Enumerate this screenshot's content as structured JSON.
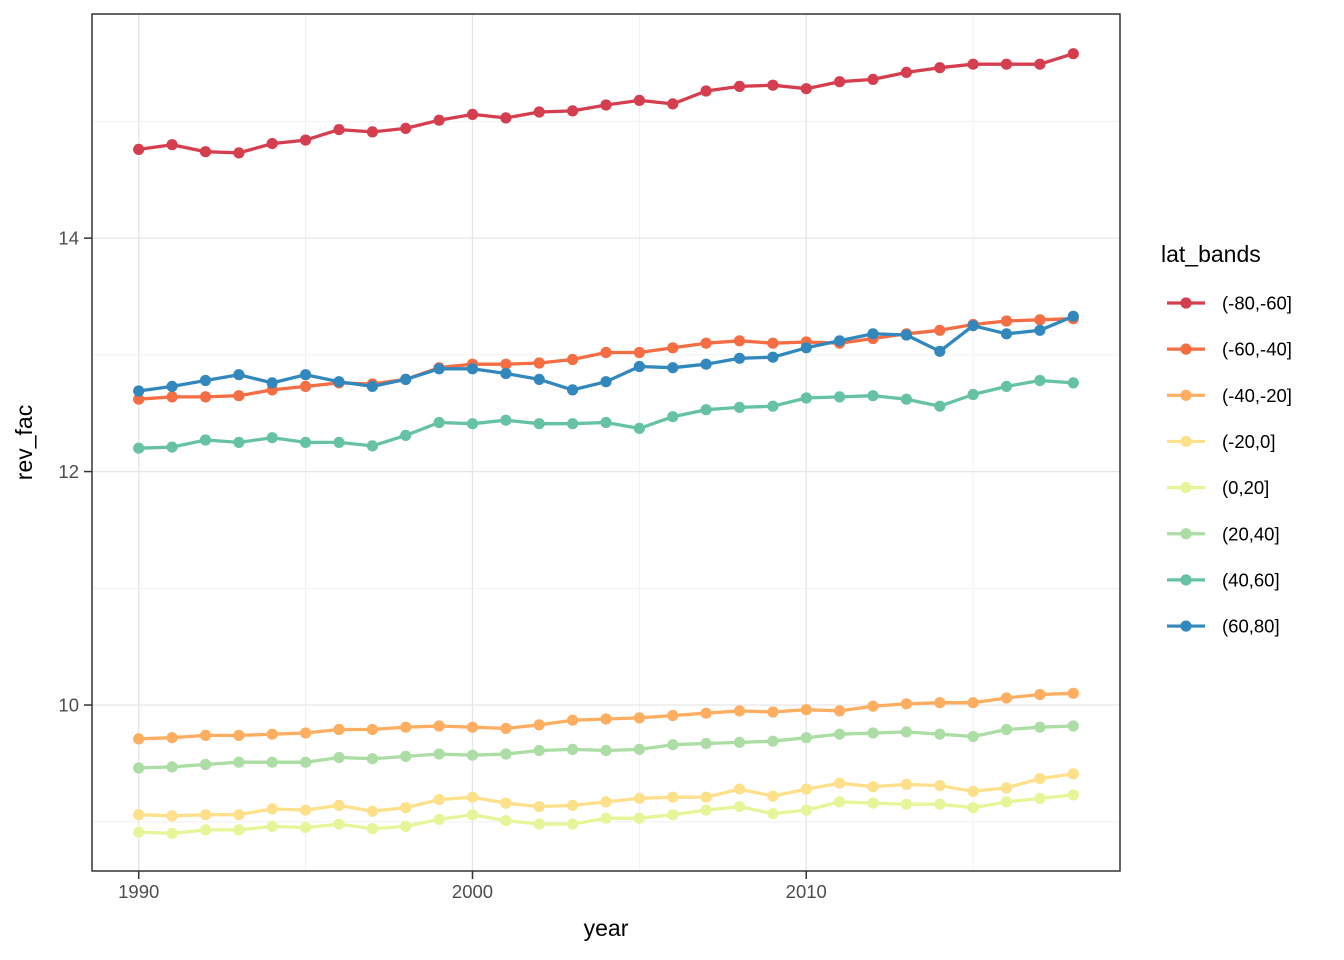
{
  "figure": {
    "xlabel": "year",
    "ylabel": "rev_fac",
    "legend_title": "lat_bands"
  },
  "chart_data": {
    "type": "line",
    "title": "",
    "xlabel": "year",
    "ylabel": "rev_fac",
    "grid": true,
    "legend_position": "right",
    "legend_title": "lat_bands",
    "x": [
      1990,
      1991,
      1992,
      1993,
      1994,
      1995,
      1996,
      1997,
      1998,
      1999,
      2000,
      2001,
      2002,
      2003,
      2004,
      2005,
      2006,
      2007,
      2008,
      2009,
      2010,
      2011,
      2012,
      2013,
      2014,
      2015,
      2016,
      2017,
      2018
    ],
    "xlim": [
      1988.6,
      2019.4
    ],
    "ylim": [
      8.58,
      15.92
    ],
    "x_ticks": [
      1990,
      2000,
      2010
    ],
    "x_minor_gridlines": [
      1995,
      2005,
      2015
    ],
    "y_ticks": [
      10,
      12,
      14
    ],
    "y_minor_gridlines": [
      9,
      11,
      13,
      15
    ],
    "series": [
      {
        "name": "(-80,-60]",
        "color": "#d53e4f",
        "values": [
          14.76,
          14.8,
          14.74,
          14.73,
          14.81,
          14.84,
          14.93,
          14.91,
          14.94,
          15.01,
          15.06,
          15.03,
          15.08,
          15.09,
          15.14,
          15.18,
          15.15,
          15.26,
          15.3,
          15.31,
          15.28,
          15.34,
          15.36,
          15.42,
          15.46,
          15.49,
          15.49,
          15.49,
          15.58
        ]
      },
      {
        "name": "(-60,-40]",
        "color": "#f46d43",
        "values": [
          12.62,
          12.64,
          12.64,
          12.65,
          12.7,
          12.73,
          12.76,
          12.75,
          12.79,
          12.89,
          12.92,
          12.92,
          12.93,
          12.96,
          13.02,
          13.02,
          13.06,
          13.1,
          13.12,
          13.1,
          13.11,
          13.1,
          13.14,
          13.18,
          13.21,
          13.26,
          13.29,
          13.3,
          13.31
        ]
      },
      {
        "name": "(-40,-20]",
        "color": "#fdae61",
        "values": [
          9.71,
          9.72,
          9.74,
          9.74,
          9.75,
          9.76,
          9.79,
          9.79,
          9.81,
          9.82,
          9.81,
          9.8,
          9.83,
          9.87,
          9.88,
          9.89,
          9.91,
          9.93,
          9.95,
          9.94,
          9.96,
          9.95,
          9.99,
          10.01,
          10.02,
          10.02,
          10.06,
          10.09,
          10.1
        ]
      },
      {
        "name": "(-20,0]",
        "color": "#fee08b",
        "values": [
          9.06,
          9.05,
          9.06,
          9.06,
          9.11,
          9.1,
          9.14,
          9.09,
          9.12,
          9.19,
          9.21,
          9.16,
          9.13,
          9.14,
          9.17,
          9.2,
          9.21,
          9.21,
          9.28,
          9.22,
          9.28,
          9.33,
          9.3,
          9.32,
          9.31,
          9.26,
          9.29,
          9.37,
          9.41
        ]
      },
      {
        "name": "(0,20]",
        "color": "#e6f598",
        "values": [
          8.91,
          8.9,
          8.93,
          8.93,
          8.96,
          8.95,
          8.98,
          8.94,
          8.96,
          9.02,
          9.06,
          9.01,
          8.98,
          8.98,
          9.03,
          9.03,
          9.06,
          9.1,
          9.13,
          9.07,
          9.1,
          9.17,
          9.16,
          9.15,
          9.15,
          9.12,
          9.17,
          9.2,
          9.23
        ]
      },
      {
        "name": "(20,40]",
        "color": "#abdda4",
        "values": [
          9.46,
          9.47,
          9.49,
          9.51,
          9.51,
          9.51,
          9.55,
          9.54,
          9.56,
          9.58,
          9.57,
          9.58,
          9.61,
          9.62,
          9.61,
          9.62,
          9.66,
          9.67,
          9.68,
          9.69,
          9.72,
          9.75,
          9.76,
          9.77,
          9.75,
          9.73,
          9.79,
          9.81,
          9.82
        ]
      },
      {
        "name": "(40,60]",
        "color": "#66c2a5",
        "values": [
          12.2,
          12.21,
          12.27,
          12.25,
          12.29,
          12.25,
          12.25,
          12.22,
          12.31,
          12.42,
          12.41,
          12.44,
          12.41,
          12.41,
          12.42,
          12.37,
          12.47,
          12.53,
          12.55,
          12.56,
          12.63,
          12.64,
          12.65,
          12.62,
          12.56,
          12.66,
          12.73,
          12.78,
          12.76
        ]
      },
      {
        "name": "(60,80]",
        "color": "#3288bd",
        "values": [
          12.69,
          12.73,
          12.78,
          12.83,
          12.76,
          12.83,
          12.77,
          12.73,
          12.79,
          12.88,
          12.88,
          12.84,
          12.79,
          12.7,
          12.77,
          12.9,
          12.89,
          12.92,
          12.97,
          12.98,
          13.06,
          13.12,
          13.18,
          13.17,
          13.03,
          13.25,
          13.18,
          13.21,
          13.33
        ]
      }
    ],
    "style": {
      "grid_major_color": "#e6e6e6",
      "grid_minor_color": "#f0f0f0",
      "panel_border_color": "#333333",
      "tick_color": "#333333",
      "axis_text_color": "#4d4d4d"
    }
  }
}
